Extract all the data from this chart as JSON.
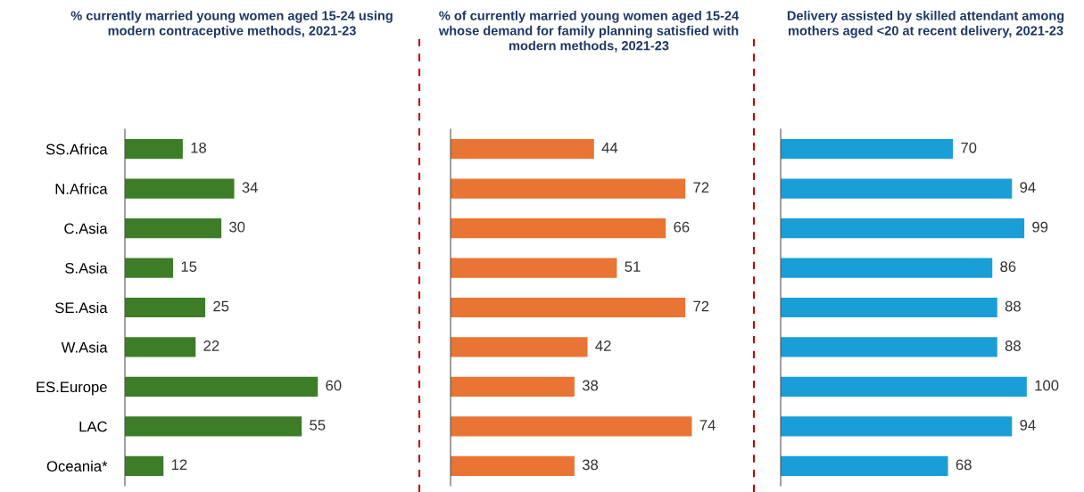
{
  "chart_data": [
    {
      "type": "bar",
      "orientation": "horizontal",
      "title": "% currently married young women aged 15-24 using modern contraceptive methods, 2021-23",
      "categories": [
        "SS.Africa",
        "N.Africa",
        "C.Asia",
        "S.Asia",
        "SE.Asia",
        "W.Asia",
        "ES.Europe",
        "LAC",
        "Oceania*"
      ],
      "values": [
        18,
        34,
        30,
        15,
        25,
        22,
        60,
        55,
        12
      ],
      "color": "#3d7d27",
      "data_labels": true,
      "tick_labels": "y"
    },
    {
      "type": "bar",
      "orientation": "horizontal",
      "title": "% of currently married young women aged 15-24 whose demand for family planning satisfied with modern methods, 2021-23",
      "categories": [
        null,
        null,
        null,
        null,
        null,
        null,
        null,
        null,
        null
      ],
      "values": [
        44,
        72,
        66,
        51,
        72,
        42,
        38,
        74,
        38
      ],
      "color": "#e97434",
      "data_labels": true,
      "tick_labels": false
    },
    {
      "type": "bar",
      "orientation": "horizontal",
      "title": "Delivery assisted by skilled attendant among mothers aged <20 at recent delivery, 2021-23",
      "categories": [
        null,
        null,
        null,
        null,
        null,
        null,
        null,
        null,
        null
      ],
      "values": [
        70,
        94,
        99,
        86,
        88,
        88,
        100,
        94,
        68
      ],
      "color": "#1a9ed8",
      "data_labels": true,
      "tick_labels": false
    }
  ]
}
